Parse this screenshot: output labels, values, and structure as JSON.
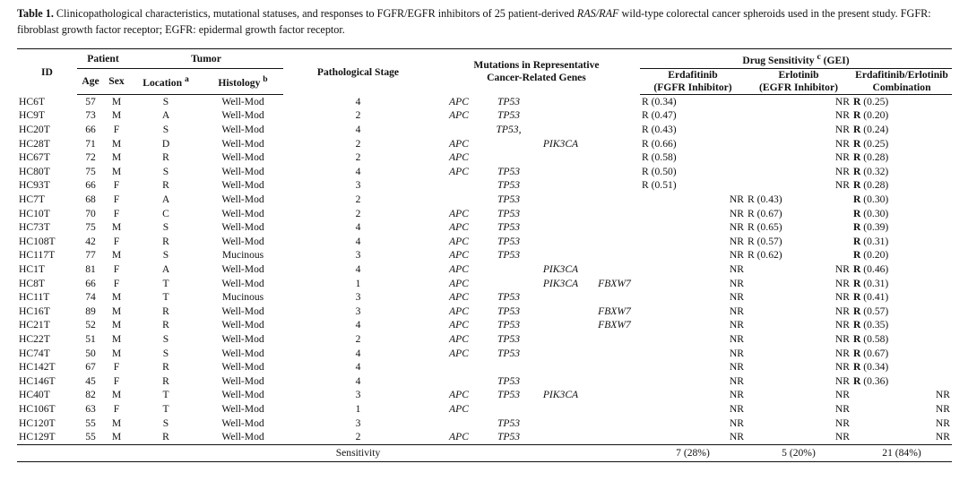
{
  "caption": {
    "label": "Table 1.",
    "text_before": " Clinicopathological characteristics, mutational statuses, and responses to FGFR/EGFR inhibitors of 25 patient-derived ",
    "italic_ras": "RAS/RAF",
    "text_after": " wild-type colorectal cancer spheroids used in the present study. FGFR: fibroblast growth factor receptor; EGFR: epidermal growth factor receptor."
  },
  "headers": {
    "id": "ID",
    "patient": "Patient",
    "tumor": "Tumor",
    "path_stage": "Pathological Stage",
    "mutations_line1": "Mutations in Representative",
    "mutations_line2": "Cancer-Related Genes",
    "drug_sensitivity": "Drug Sensitivity",
    "drug_sup": "c",
    "drug_unit": "(GEI)",
    "age": "Age",
    "sex": "Sex",
    "location": "Location",
    "location_sup": "a",
    "histology": "Histology",
    "histology_sup": "b",
    "erda_1": "Erdafitinib",
    "erda_2": "(FGFR Inhibitor)",
    "erlo_1": "Erlotinib",
    "erlo_2": "(EGFR Inhibitor)",
    "combo_1": "Erdafitinib/Erlotinib",
    "combo_2": "Combination"
  },
  "rows": [
    {
      "id": "HC6T",
      "age": "57",
      "sex": "M",
      "loc": "S",
      "hist": "Well-Mod",
      "stage": "4",
      "apc": "APC",
      "tp53": "TP53",
      "pik3ca": "",
      "fbxw7": "",
      "erda": "R (0.34)",
      "erlo": "NR",
      "combo": "R (0.25)"
    },
    {
      "id": "HC9T",
      "age": "73",
      "sex": "M",
      "loc": "A",
      "hist": "Well-Mod",
      "stage": "2",
      "apc": "APC",
      "tp53": "TP53",
      "pik3ca": "",
      "fbxw7": "",
      "erda": "R (0.47)",
      "erlo": "NR",
      "combo": "R (0.20)"
    },
    {
      "id": "HC20T",
      "age": "66",
      "sex": "F",
      "loc": "S",
      "hist": "Well-Mod",
      "stage": "4",
      "apc": "",
      "tp53": "TP53,",
      "pik3ca": "",
      "fbxw7": "",
      "erda": "R (0.43)",
      "erlo": "NR",
      "combo": "R (0.24)"
    },
    {
      "id": "HC28T",
      "age": "71",
      "sex": "M",
      "loc": "D",
      "hist": "Well-Mod",
      "stage": "2",
      "apc": "APC",
      "tp53": "",
      "pik3ca": "PIK3CA",
      "fbxw7": "",
      "erda": "R (0.66)",
      "erlo": "NR",
      "combo": "R (0.25)"
    },
    {
      "id": "HC67T",
      "age": "72",
      "sex": "M",
      "loc": "R",
      "hist": "Well-Mod",
      "stage": "2",
      "apc": "APC",
      "tp53": "",
      "pik3ca": "",
      "fbxw7": "",
      "erda": "R (0.58)",
      "erlo": "NR",
      "combo": "R (0.28)"
    },
    {
      "id": "HC80T",
      "age": "75",
      "sex": "M",
      "loc": "S",
      "hist": "Well-Mod",
      "stage": "4",
      "apc": "APC",
      "tp53": "TP53",
      "pik3ca": "",
      "fbxw7": "",
      "erda": "R (0.50)",
      "erlo": "NR",
      "combo": "R (0.32)"
    },
    {
      "id": "HC93T",
      "age": "66",
      "sex": "F",
      "loc": "R",
      "hist": "Well-Mod",
      "stage": "3",
      "apc": "",
      "tp53": "TP53",
      "pik3ca": "",
      "fbxw7": "",
      "erda": "R (0.51)",
      "erlo": "NR",
      "combo": "R (0.28)"
    },
    {
      "id": "HC7T",
      "age": "68",
      "sex": "F",
      "loc": "A",
      "hist": "Well-Mod",
      "stage": "2",
      "apc": "",
      "tp53": "TP53",
      "pik3ca": "",
      "fbxw7": "",
      "erda": "NR",
      "erlo": "R (0.43)",
      "combo": "R (0.30)"
    },
    {
      "id": "HC10T",
      "age": "70",
      "sex": "F",
      "loc": "C",
      "hist": "Well-Mod",
      "stage": "2",
      "apc": "APC",
      "tp53": "TP53",
      "pik3ca": "",
      "fbxw7": "",
      "erda": "NR",
      "erlo": "R (0.67)",
      "combo": "R (0.30)"
    },
    {
      "id": "HC73T",
      "age": "75",
      "sex": "M",
      "loc": "S",
      "hist": "Well-Mod",
      "stage": "4",
      "apc": "APC",
      "tp53": "TP53",
      "pik3ca": "",
      "fbxw7": "",
      "erda": "NR",
      "erlo": "R (0.65)",
      "combo": "R (0.39)"
    },
    {
      "id": "HC108T",
      "age": "42",
      "sex": "F",
      "loc": "R",
      "hist": "Well-Mod",
      "stage": "4",
      "apc": "APC",
      "tp53": "TP53",
      "pik3ca": "",
      "fbxw7": "",
      "erda": "NR",
      "erlo": "R (0.57)",
      "combo": "R (0.31)"
    },
    {
      "id": "HC117T",
      "age": "77",
      "sex": "M",
      "loc": "S",
      "hist": "Mucinous",
      "stage": "3",
      "apc": "APC",
      "tp53": "TP53",
      "pik3ca": "",
      "fbxw7": "",
      "erda": "NR",
      "erlo": "R (0.62)",
      "combo": "R (0.20)"
    },
    {
      "id": "HC1T",
      "age": "81",
      "sex": "F",
      "loc": "A",
      "hist": "Well-Mod",
      "stage": "4",
      "apc": "APC",
      "tp53": "",
      "pik3ca": "PIK3CA",
      "fbxw7": "",
      "erda": "NR",
      "erlo": "NR",
      "combo": "R (0.46)"
    },
    {
      "id": "HC8T",
      "age": "66",
      "sex": "F",
      "loc": "T",
      "hist": "Well-Mod",
      "stage": "1",
      "apc": "APC",
      "tp53": "",
      "pik3ca": "PIK3CA",
      "fbxw7": "FBXW7",
      "erda": "NR",
      "erlo": "NR",
      "combo": "R (0.31)"
    },
    {
      "id": "HC11T",
      "age": "74",
      "sex": "M",
      "loc": "T",
      "hist": "Mucinous",
      "stage": "3",
      "apc": "APC",
      "tp53": "TP53",
      "pik3ca": "",
      "fbxw7": "",
      "erda": "NR",
      "erlo": "NR",
      "combo": "R (0.41)"
    },
    {
      "id": "HC16T",
      "age": "89",
      "sex": "M",
      "loc": "R",
      "hist": "Well-Mod",
      "stage": "3",
      "apc": "APC",
      "tp53": "TP53",
      "pik3ca": "",
      "fbxw7": "FBXW7",
      "erda": "NR",
      "erlo": "NR",
      "combo": "R (0.57)"
    },
    {
      "id": "HC21T",
      "age": "52",
      "sex": "M",
      "loc": "R",
      "hist": "Well-Mod",
      "stage": "4",
      "apc": "APC",
      "tp53": "TP53",
      "pik3ca": "",
      "fbxw7": "FBXW7",
      "erda": "NR",
      "erlo": "NR",
      "combo": "R (0.35)"
    },
    {
      "id": "HC22T",
      "age": "51",
      "sex": "M",
      "loc": "S",
      "hist": "Well-Mod",
      "stage": "2",
      "apc": "APC",
      "tp53": "TP53",
      "pik3ca": "",
      "fbxw7": "",
      "erda": "NR",
      "erlo": "NR",
      "combo": "R (0.58)"
    },
    {
      "id": "HC74T",
      "age": "50",
      "sex": "M",
      "loc": "S",
      "hist": "Well-Mod",
      "stage": "4",
      "apc": "APC",
      "tp53": "TP53",
      "pik3ca": "",
      "fbxw7": "",
      "erda": "NR",
      "erlo": "NR",
      "combo": "R (0.67)"
    },
    {
      "id": "HC142T",
      "age": "67",
      "sex": "F",
      "loc": "R",
      "hist": "Well-Mod",
      "stage": "4",
      "apc": "",
      "tp53": "",
      "pik3ca": "",
      "fbxw7": "",
      "erda": "NR",
      "erlo": "NR",
      "combo": "R (0.34)"
    },
    {
      "id": "HC146T",
      "age": "45",
      "sex": "F",
      "loc": "R",
      "hist": "Well-Mod",
      "stage": "4",
      "apc": "",
      "tp53": "TP53",
      "pik3ca": "",
      "fbxw7": "",
      "erda": "NR",
      "erlo": "NR",
      "combo": "R (0.36)"
    },
    {
      "id": "HC40T",
      "age": "82",
      "sex": "M",
      "loc": "T",
      "hist": "Well-Mod",
      "stage": "3",
      "apc": "APC",
      "tp53": "TP53",
      "pik3ca": "PIK3CA",
      "fbxw7": "",
      "erda": "NR",
      "erlo": "NR",
      "combo": "NR"
    },
    {
      "id": "HC106T",
      "age": "63",
      "sex": "F",
      "loc": "T",
      "hist": "Well-Mod",
      "stage": "1",
      "apc": "APC",
      "tp53": "",
      "pik3ca": "",
      "fbxw7": "",
      "erda": "NR",
      "erlo": "NR",
      "combo": "NR"
    },
    {
      "id": "HC120T",
      "age": "55",
      "sex": "M",
      "loc": "S",
      "hist": "Well-Mod",
      "stage": "3",
      "apc": "",
      "tp53": "TP53",
      "pik3ca": "",
      "fbxw7": "",
      "erda": "NR",
      "erlo": "NR",
      "combo": "NR"
    },
    {
      "id": "HC129T",
      "age": "55",
      "sex": "M",
      "loc": "R",
      "hist": "Well-Mod",
      "stage": "2",
      "apc": "APC",
      "tp53": "TP53",
      "pik3ca": "",
      "fbxw7": "",
      "erda": "NR",
      "erlo": "NR",
      "combo": "NR"
    }
  ],
  "footer": {
    "label": "Sensitivity",
    "erda": "7 (28%)",
    "erlo": "5 (20%)",
    "combo": "21 (84%)"
  }
}
